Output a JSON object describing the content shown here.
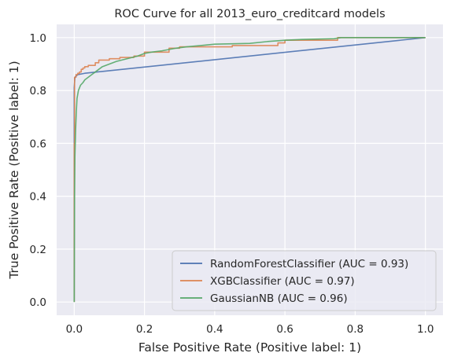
{
  "chart_data": {
    "type": "line",
    "title": "ROC Curve for all 2013_euro_creditcard models",
    "xlabel": "False Positive Rate (Positive label: 1)",
    "ylabel": "True Positive Rate (Positive label: 1)",
    "xlim": [
      -0.05,
      1.05
    ],
    "ylim": [
      -0.05,
      1.05
    ],
    "xticks": [
      0.0,
      0.2,
      0.4,
      0.6,
      0.8,
      1.0
    ],
    "yticks": [
      0.0,
      0.2,
      0.4,
      0.6,
      0.8,
      1.0
    ],
    "xtick_labels": [
      "0.0",
      "0.2",
      "0.4",
      "0.6",
      "0.8",
      "1.0"
    ],
    "ytick_labels": [
      "0.0",
      "0.2",
      "0.4",
      "0.6",
      "0.8",
      "1.0"
    ],
    "grid": true,
    "legend_position": "bottom-right",
    "series": [
      {
        "name": "RandomForestClassifier (AUC = 0.93)",
        "color": "#4c72b0",
        "x": [
          0.0,
          0.0,
          0.002,
          0.01,
          0.03,
          1.0
        ],
        "y": [
          0.0,
          0.81,
          0.85,
          0.86,
          0.865,
          1.0
        ]
      },
      {
        "name": "XGBClassifier (AUC = 0.97)",
        "color": "#dd8452",
        "x": [
          0.0,
          0.0,
          0.001,
          0.001,
          0.005,
          0.005,
          0.01,
          0.01,
          0.015,
          0.015,
          0.02,
          0.02,
          0.025,
          0.025,
          0.03,
          0.03,
          0.04,
          0.04,
          0.06,
          0.06,
          0.07,
          0.07,
          0.1,
          0.1,
          0.13,
          0.13,
          0.17,
          0.17,
          0.2,
          0.2,
          0.27,
          0.27,
          0.3,
          0.3,
          0.45,
          0.45,
          0.58,
          0.58,
          0.6,
          0.6,
          0.75,
          0.75,
          1.0
        ],
        "y": [
          0.0,
          0.6,
          0.6,
          0.85,
          0.85,
          0.86,
          0.86,
          0.865,
          0.865,
          0.87,
          0.87,
          0.88,
          0.88,
          0.885,
          0.885,
          0.89,
          0.89,
          0.895,
          0.895,
          0.905,
          0.905,
          0.915,
          0.915,
          0.92,
          0.92,
          0.925,
          0.925,
          0.93,
          0.93,
          0.945,
          0.945,
          0.96,
          0.96,
          0.965,
          0.965,
          0.97,
          0.97,
          0.98,
          0.98,
          0.99,
          0.99,
          1.0,
          1.0
        ]
      },
      {
        "name": "GaussianNB (AUC = 0.96)",
        "color": "#55a868",
        "x": [
          0.0,
          0.001,
          0.002,
          0.004,
          0.006,
          0.008,
          0.012,
          0.018,
          0.025,
          0.03,
          0.04,
          0.05,
          0.06,
          0.07,
          0.08,
          0.1,
          0.12,
          0.15,
          0.18,
          0.2,
          0.22,
          0.25,
          0.29,
          0.32,
          0.36,
          0.4,
          0.5,
          0.55,
          0.6,
          0.65,
          0.74,
          0.76,
          0.9,
          1.0
        ],
        "y": [
          0.0,
          0.4,
          0.55,
          0.65,
          0.72,
          0.77,
          0.8,
          0.82,
          0.83,
          0.84,
          0.85,
          0.86,
          0.87,
          0.88,
          0.89,
          0.9,
          0.91,
          0.92,
          0.93,
          0.94,
          0.945,
          0.95,
          0.96,
          0.965,
          0.97,
          0.975,
          0.978,
          0.985,
          0.99,
          0.993,
          0.996,
          1.0,
          1.0,
          1.0
        ]
      }
    ]
  }
}
